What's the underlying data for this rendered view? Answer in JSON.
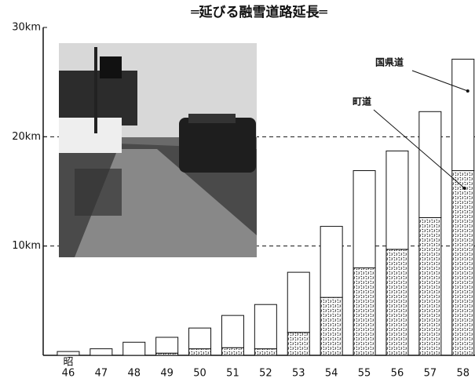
{
  "chart_data": {
    "type": "stacked-bar",
    "title": "═延びる融雪道路延長═",
    "x_label": "昭",
    "categories": [
      "46",
      "47",
      "48",
      "49",
      "50",
      "51",
      "52",
      "53",
      "54",
      "55",
      "56",
      "57",
      "58"
    ],
    "series": [
      {
        "name": "町道",
        "color": "#222222",
        "values": [
          0,
          0,
          0,
          0.2,
          0.6,
          0.7,
          0.6,
          2.1,
          5.3,
          8.0,
          9.7,
          12.6,
          16.9
        ]
      },
      {
        "name": "国県道",
        "color": "#ffffff",
        "values": [
          0.35,
          0.6,
          1.2,
          1.45,
          1.9,
          2.95,
          4.05,
          5.5,
          6.5,
          8.9,
          9.0,
          9.7,
          10.2
        ]
      }
    ],
    "ylim": [
      0,
      30
    ],
    "yticks": [
      {
        "value": 10,
        "label": "10km"
      },
      {
        "value": 20,
        "label": "20km"
      },
      {
        "value": 30,
        "label": "30km"
      }
    ],
    "grid": true
  }
}
